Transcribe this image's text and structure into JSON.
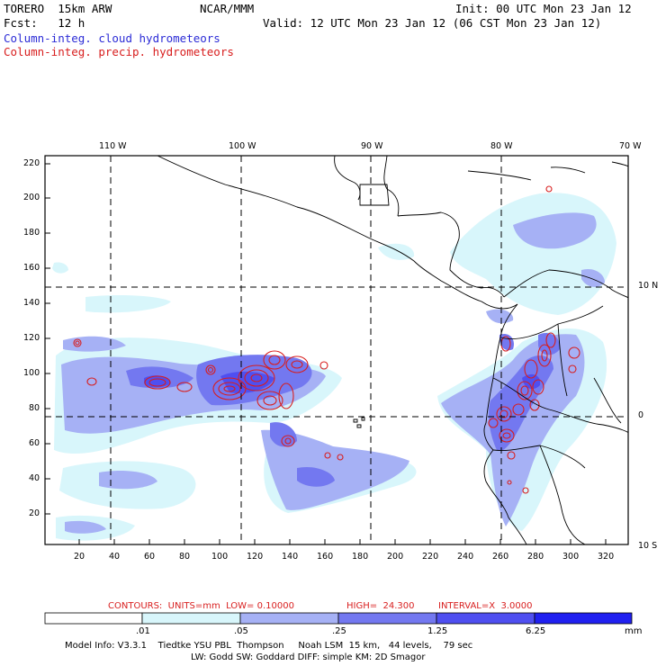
{
  "header": {
    "model": "TORERO  15km ARW",
    "org": "NCAR/MMM",
    "init": "Init: 00 UTC Mon 23 Jan 12",
    "fcst": "Fcst:   12 h",
    "valid": "Valid: 12 UTC Mon 23 Jan 12 (06 CST Mon 23 Jan 12)",
    "field_cloud": "Column-integ. cloud hydrometeors",
    "field_precip": "Column-integ. precip. hydrometeors"
  },
  "map": {
    "lon_labels": [
      "110 W",
      "100 W",
      "90 W",
      "80 W",
      "70 W"
    ],
    "lat_labels": [
      "10 N",
      "0",
      "10 S"
    ],
    "y_ticks": [
      "220",
      "200",
      "180",
      "160",
      "140",
      "120",
      "100",
      "80",
      "60",
      "40",
      "20"
    ],
    "x_ticks": [
      "20",
      "40",
      "60",
      "80",
      "100",
      "120",
      "140",
      "160",
      "180",
      "200",
      "220",
      "240",
      "260",
      "280",
      "300",
      "320"
    ]
  },
  "contour_info": {
    "contours": "CONTOURS:  UNITS=mm  LOW= 0.10000",
    "high": "HIGH=  24.300",
    "interval": "INTERVAL=X  3.0000"
  },
  "colorbar": {
    "labels": [
      ".01",
      ".05",
      ".25",
      "1.25",
      "6.25"
    ],
    "unit": "mm",
    "colors": [
      "#ffffff",
      "#d8f6fb",
      "#a6b1f5",
      "#7378f0",
      "#4f4ff0",
      "#2020f0"
    ]
  },
  "model_info": {
    "line1": "Model Info: V3.3.1    Tiedtke YSU PBL  Thompson     Noah LSM  15 km,   44 levels,    79 sec",
    "line2": "LW: Godd SW: Goddard DIFF: simple KM: 2D Smagor"
  },
  "colors": {
    "cloud_text": "#2b2bd6",
    "precip_text": "#d81e1e",
    "precip_contour": "#d81e1e"
  }
}
